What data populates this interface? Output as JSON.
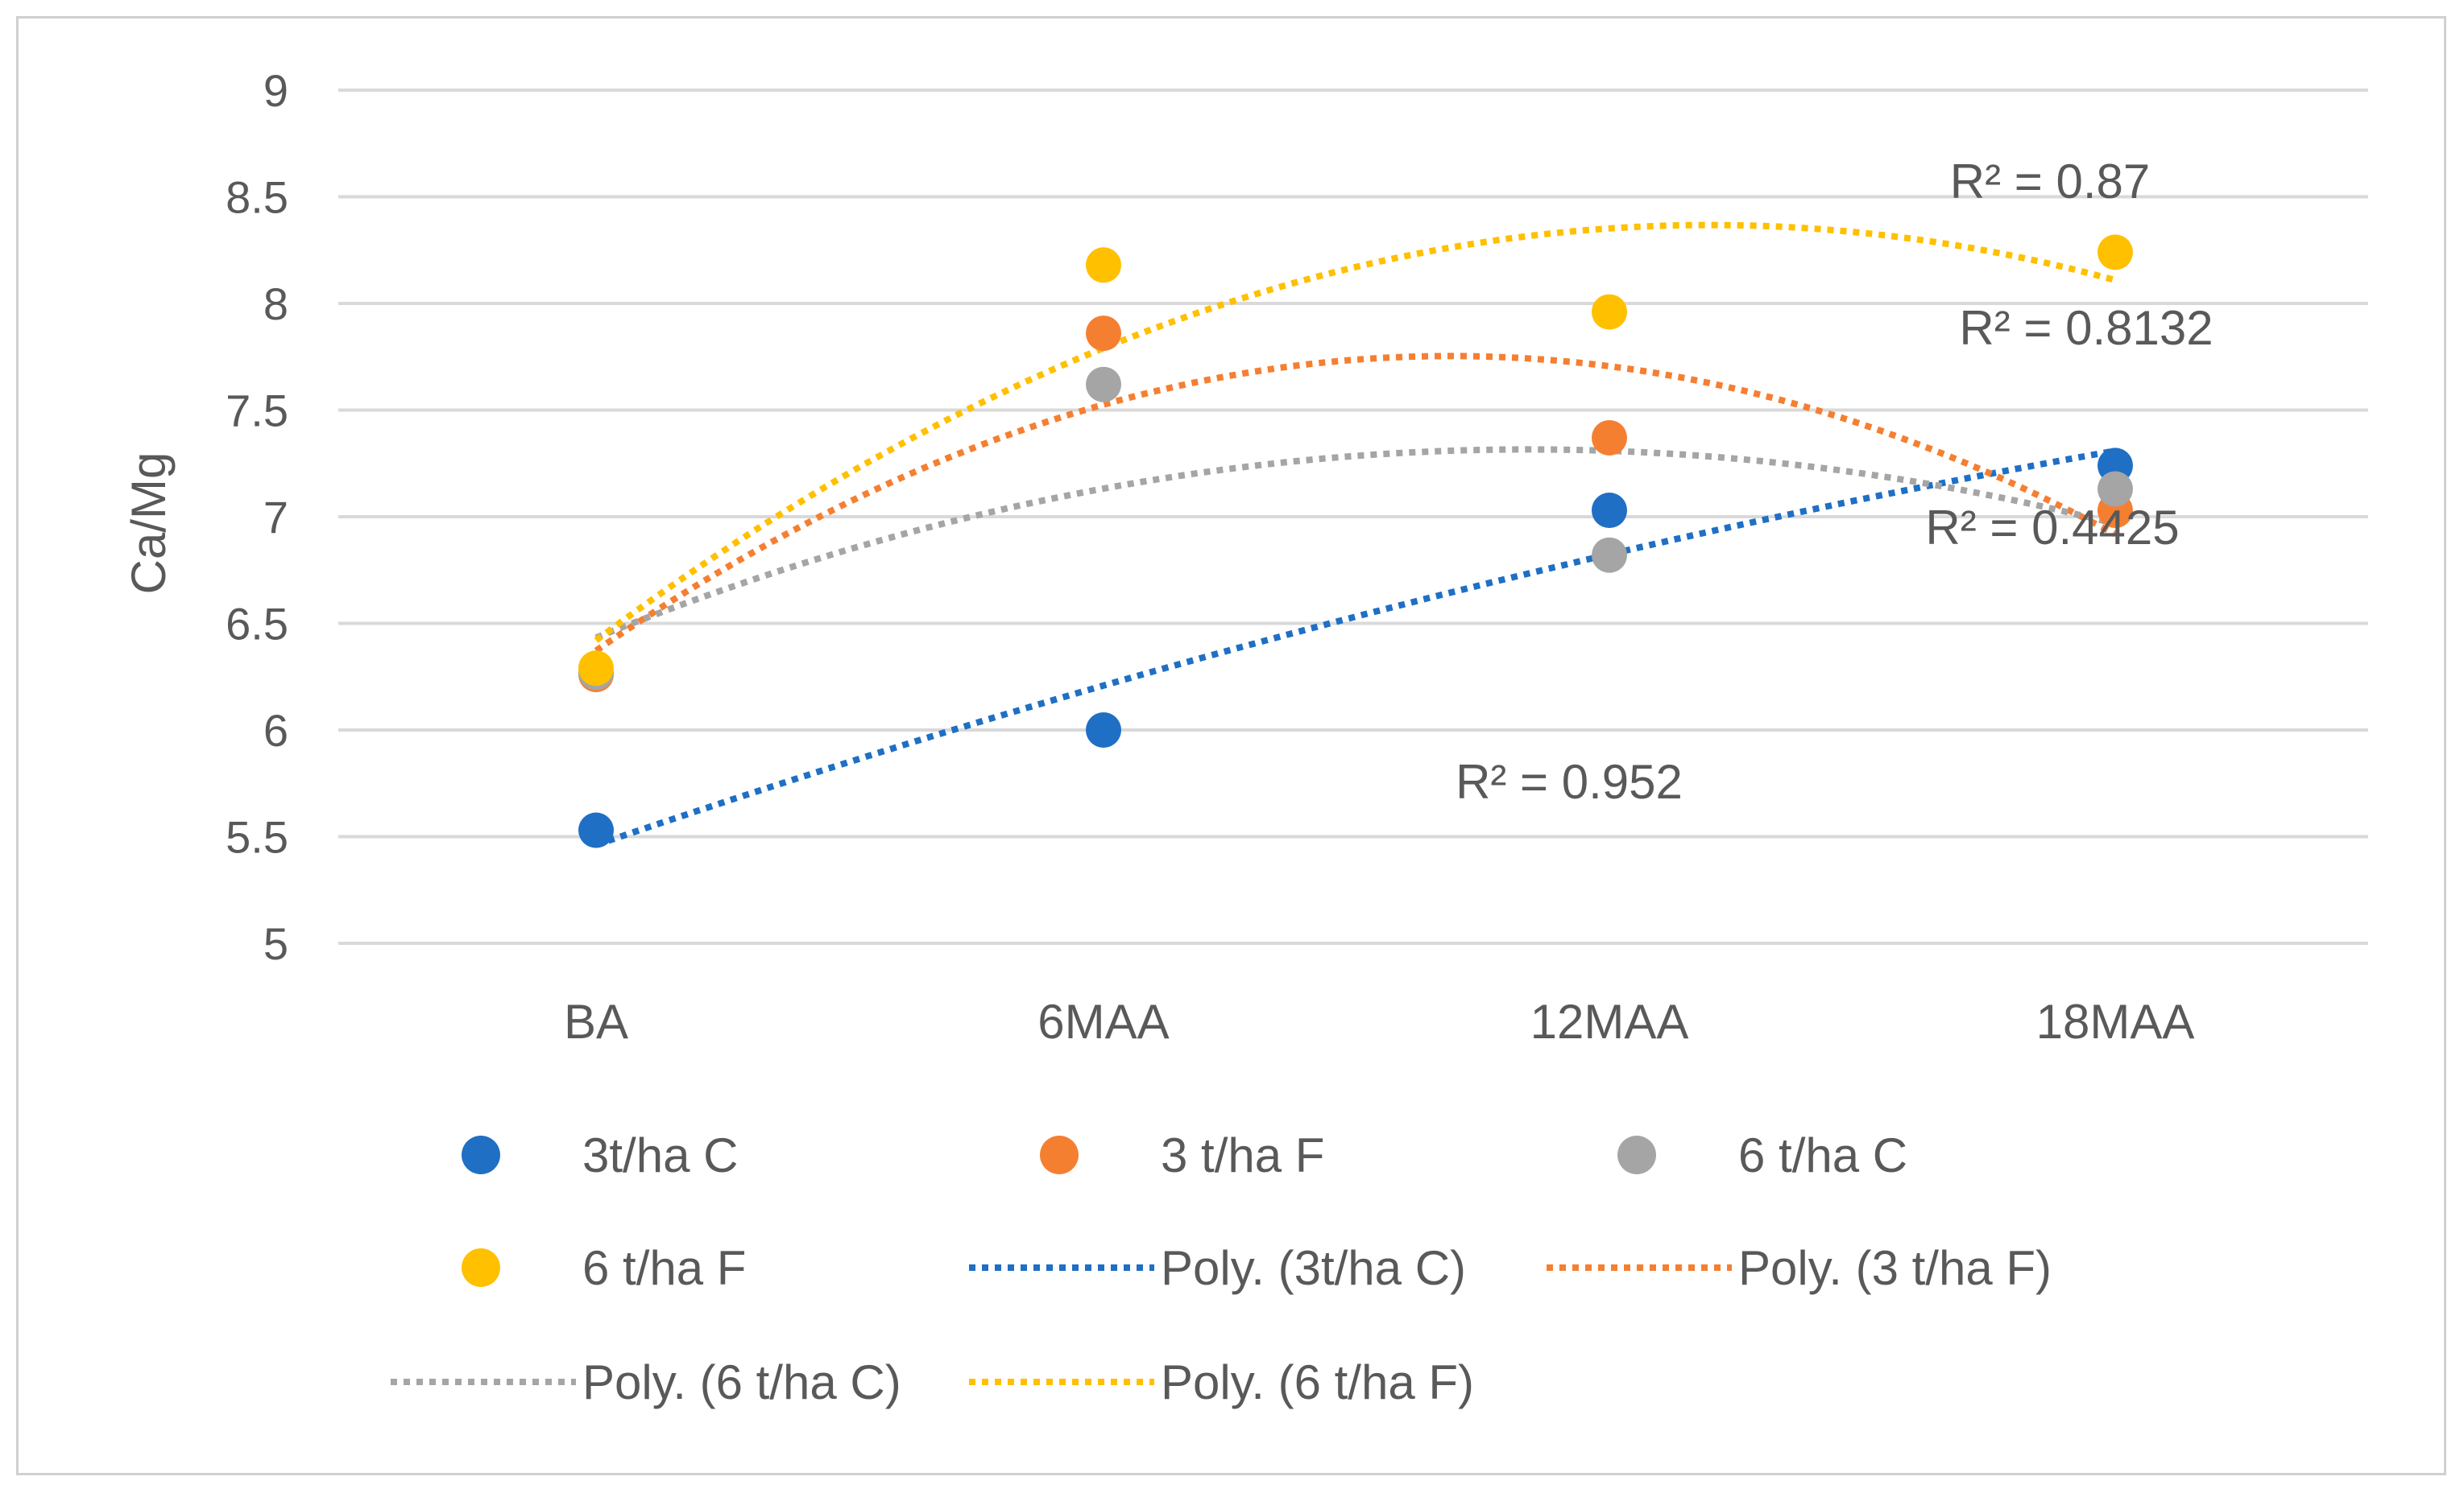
{
  "chart_data": {
    "type": "scatter",
    "title": "",
    "xlabel": "",
    "ylabel": "Ca/Mg",
    "ylim": [
      5,
      9
    ],
    "ytick_step": 0.5,
    "ytick_labels": [
      "5",
      "5.5",
      "6",
      "6.5",
      "7",
      "7.5",
      "8",
      "8.5",
      "9"
    ],
    "categories": [
      "BA",
      "6MAA",
      "12MAA",
      "18MAA"
    ],
    "grid": true,
    "legend_position": "bottom",
    "series": [
      {
        "name": "3t/ha C",
        "color": "#1f6fc5",
        "values": [
          5.53,
          6.0,
          7.03,
          7.24
        ],
        "trend_name": "Poly. (3t/ha C)",
        "r2": "R² = 0.952"
      },
      {
        "name": "3 t/ha F",
        "color": "#f57f31",
        "values": [
          6.26,
          7.86,
          7.37,
          7.03
        ],
        "trend_name": "Poly. (3 t/ha F)",
        "r2": "R² = 0.8132"
      },
      {
        "name": "6 t/ha C",
        "color": "#a5a5a5",
        "values": [
          6.27,
          7.62,
          6.82,
          7.13
        ],
        "trend_name": "Poly. (6 t/ha C)",
        "r2": "R² = 0.4425"
      },
      {
        "name": "6 t/ha F",
        "color": "#ffc000",
        "values": [
          6.29,
          8.18,
          7.96,
          8.24
        ],
        "trend_name": "Poly. (6 t/ha F)",
        "r2": "R² = 0.87"
      }
    ]
  }
}
